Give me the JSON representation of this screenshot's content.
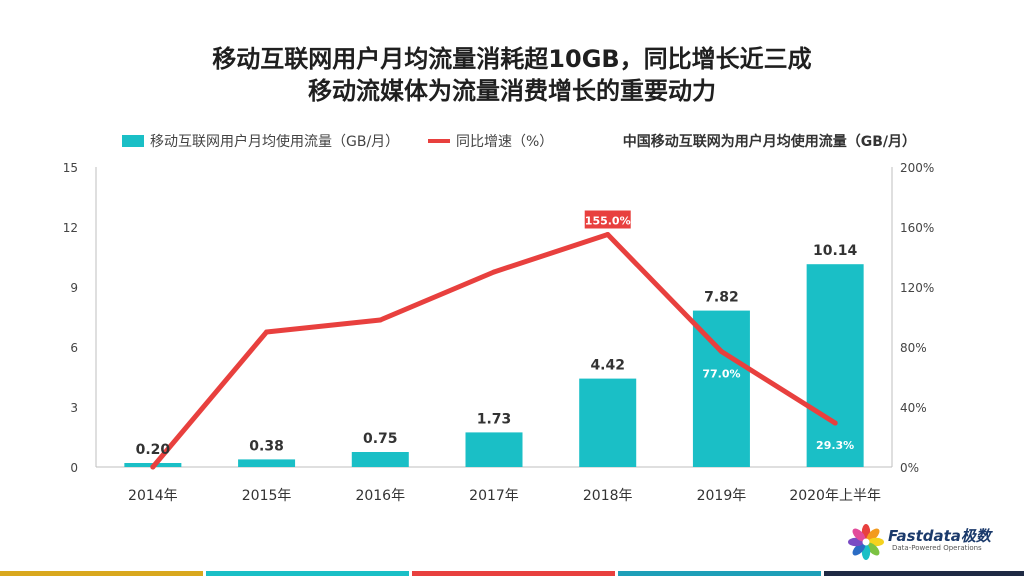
{
  "title_line1": "移动互联网用户月均流量消耗超10GB，同比增长近三成",
  "title_line2": "移动流媒体为流量消费增长的重要动力",
  "chart_data": {
    "type": "bar",
    "title": "中国移动互联网为用户月均使用流量（GB/月）",
    "categories": [
      "2014年",
      "2015年",
      "2016年",
      "2017年",
      "2018年",
      "2019年",
      "2020年上半年"
    ],
    "series": [
      {
        "name": "移动互联网用户月均使用流量（GB/月）",
        "type": "bar",
        "axis": "left",
        "values": [
          0.2,
          0.38,
          0.75,
          1.73,
          4.42,
          7.82,
          10.14
        ],
        "labels": [
          "0.20",
          "0.38",
          "0.75",
          "1.73",
          "4.42",
          "7.82",
          "10.14"
        ]
      },
      {
        "name": "同比增速（%）",
        "type": "line",
        "axis": "right",
        "values": [
          0,
          90,
          98,
          130,
          155.0,
          77.0,
          29.3
        ],
        "labels": [
          null,
          null,
          null,
          null,
          "155.0%",
          "77.0%",
          "29.3%"
        ]
      }
    ],
    "y_left": {
      "range": [
        0,
        15
      ],
      "ticks": [
        "0",
        "3",
        "6",
        "9",
        "12",
        "15"
      ]
    },
    "y_right": {
      "range": [
        0,
        200
      ],
      "ticks": [
        "0%",
        "40%",
        "80%",
        "120%",
        "160%",
        "200%"
      ]
    },
    "legend_position": "top-left",
    "grid": false
  },
  "colors": {
    "bar": "#1ABFC6",
    "line": "#E8403E",
    "label_box": "#E8403E"
  },
  "logo": {
    "name": "Fastdata极数",
    "tagline": "Data-Powered Operations"
  },
  "footer_colors": [
    "#D9A81E",
    "#1ABFC6",
    "#E8403E",
    "#1E9FB8",
    "#1F2A44"
  ]
}
